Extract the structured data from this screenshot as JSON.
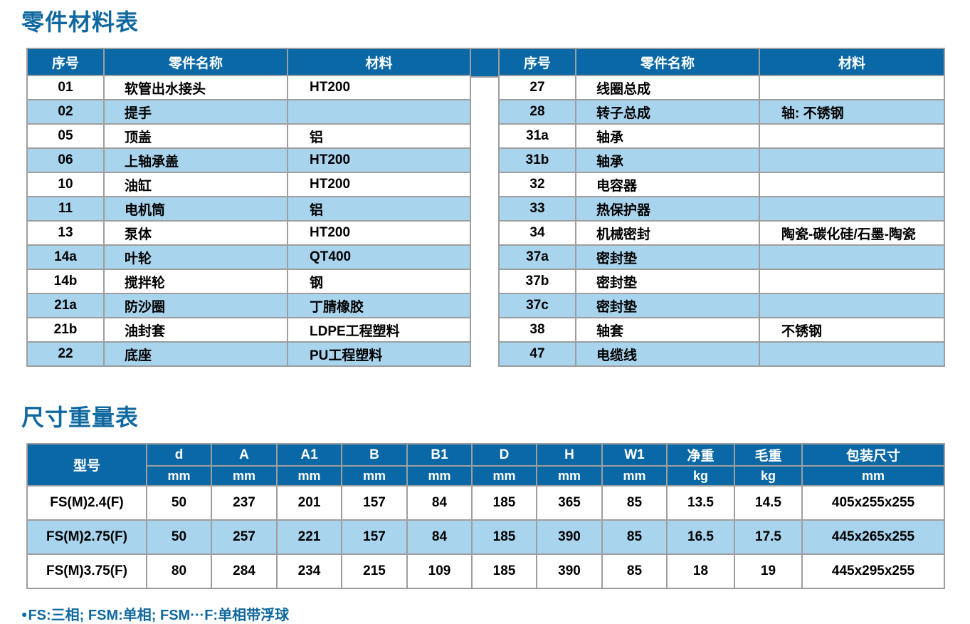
{
  "page": {
    "parts_section_title": "零件材料表",
    "dims_section_title": "尺寸重量表",
    "footnote_bullet": "●",
    "footnote": "FS:三相; FSM:单相; FSM···F:单相带浮球"
  },
  "colors": {
    "header_blue": "#0a68a6",
    "row_alt_blue": "#a9d4ee",
    "border_gray": "#9e9e9e",
    "title_blue": "#0f689f",
    "text_black": "#000000"
  },
  "parts_table": {
    "headers": [
      "序号",
      "零件名称",
      "材料"
    ],
    "left_rows": [
      {
        "no": "01",
        "name": "软管出水接头",
        "material": "HT200"
      },
      {
        "no": "02",
        "name": "提手",
        "material": ""
      },
      {
        "no": "05",
        "name": "顶盖",
        "material": "铝"
      },
      {
        "no": "06",
        "name": "上轴承盖",
        "material": "HT200"
      },
      {
        "no": "10",
        "name": "油缸",
        "material": "HT200"
      },
      {
        "no": "11",
        "name": "电机筒",
        "material": "铝"
      },
      {
        "no": "13",
        "name": "泵体",
        "material": "HT200"
      },
      {
        "no": "14a",
        "name": "叶轮",
        "material": "QT400"
      },
      {
        "no": "14b",
        "name": "搅拌轮",
        "material": "钢"
      },
      {
        "no": "21a",
        "name": "防沙圈",
        "material": "丁腈橡胶"
      },
      {
        "no": "21b",
        "name": "油封套",
        "material": "LDPE工程塑料"
      },
      {
        "no": "22",
        "name": "底座",
        "material": "PU工程塑料"
      }
    ],
    "right_rows": [
      {
        "no": "27",
        "name": "线圈总成",
        "material": ""
      },
      {
        "no": "28",
        "name": "转子总成",
        "material": "轴: 不锈钢"
      },
      {
        "no": "31a",
        "name": "轴承",
        "material": ""
      },
      {
        "no": "31b",
        "name": "轴承",
        "material": ""
      },
      {
        "no": "32",
        "name": "电容器",
        "material": ""
      },
      {
        "no": "33",
        "name": "热保护器",
        "material": ""
      },
      {
        "no": "34",
        "name": "机械密封",
        "material": "陶瓷-碳化硅/石墨-陶瓷"
      },
      {
        "no": "37a",
        "name": "密封垫",
        "material": ""
      },
      {
        "no": "37b",
        "name": "密封垫",
        "material": ""
      },
      {
        "no": "37c",
        "name": "密封垫",
        "material": ""
      },
      {
        "no": "38",
        "name": "轴套",
        "material": "不锈钢"
      },
      {
        "no": "47",
        "name": "电缆线",
        "material": ""
      }
    ]
  },
  "dims_table": {
    "model_header": "型号",
    "columns": [
      {
        "label": "d",
        "unit": "mm"
      },
      {
        "label": "A",
        "unit": "mm"
      },
      {
        "label": "A1",
        "unit": "mm"
      },
      {
        "label": "B",
        "unit": "mm"
      },
      {
        "label": "B1",
        "unit": "mm"
      },
      {
        "label": "D",
        "unit": "mm"
      },
      {
        "label": "H",
        "unit": "mm"
      },
      {
        "label": "W1",
        "unit": "mm"
      },
      {
        "label": "净重",
        "unit": "kg"
      },
      {
        "label": "毛重",
        "unit": "kg"
      },
      {
        "label": "包装尺寸",
        "unit": "mm"
      }
    ],
    "rows": [
      {
        "model": "FS(M)2.4(F)",
        "values": [
          "50",
          "237",
          "201",
          "157",
          "84",
          "185",
          "365",
          "85",
          "13.5",
          "14.5",
          "405x255x255"
        ]
      },
      {
        "model": "FS(M)2.75(F)",
        "values": [
          "50",
          "257",
          "221",
          "157",
          "84",
          "185",
          "390",
          "85",
          "16.5",
          "17.5",
          "445x265x255"
        ]
      },
      {
        "model": "FS(M)3.75(F)",
        "values": [
          "80",
          "284",
          "234",
          "215",
          "109",
          "185",
          "390",
          "85",
          "18",
          "19",
          "445x295x255"
        ]
      }
    ]
  }
}
